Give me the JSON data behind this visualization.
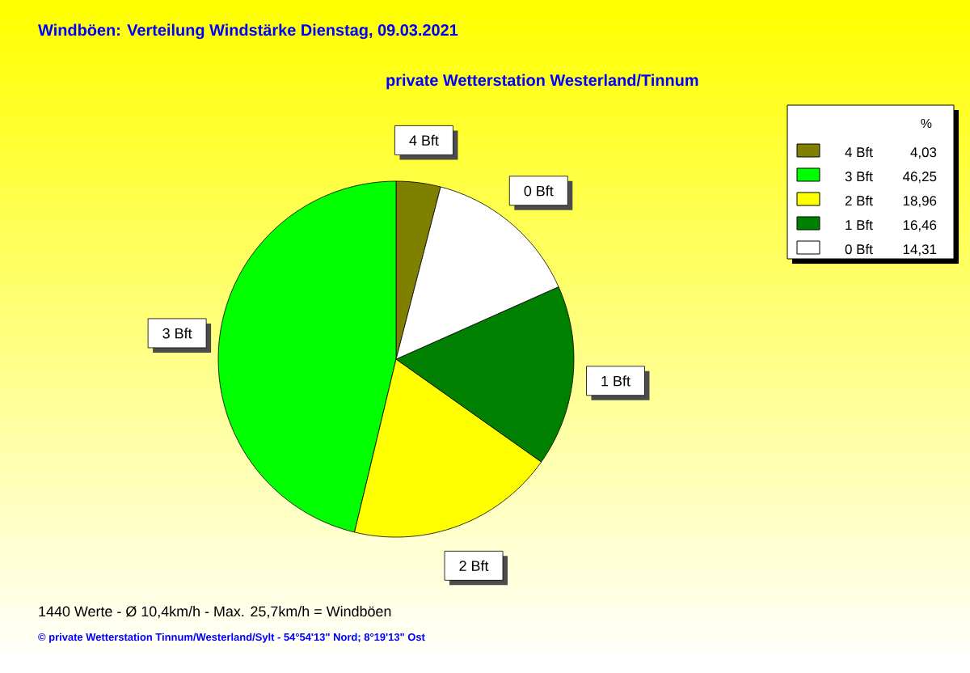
{
  "chart_data": {
    "type": "pie",
    "title": "Windböen: Verteilung Windstärke  Dienstag, 09.03.2021",
    "subtitle": "private Wetterstation Westerland/Tinnum",
    "categories": [
      "4 Bft",
      "3 Bft",
      "2 Bft",
      "1 Bft",
      "0 Bft"
    ],
    "values": [
      4.03,
      46.25,
      18.96,
      16.46,
      14.31
    ],
    "value_labels": [
      "4,03",
      "46,25",
      "18,96",
      "16,46",
      "14,31"
    ],
    "colors": [
      "#808000",
      "#00ff00",
      "#ffff00",
      "#008000",
      "#ffffff"
    ],
    "legend": "top right",
    "legend_title": "%",
    "annotations": [
      "1440 Werte   -   Ø 10,4km/h  -  Max. 25,7km/h = Windböen",
      "© private Wetterstation Tinnum/Westerland/Sylt   -   54°54'13\" Nord; 8°19'13\" Ost"
    ]
  }
}
